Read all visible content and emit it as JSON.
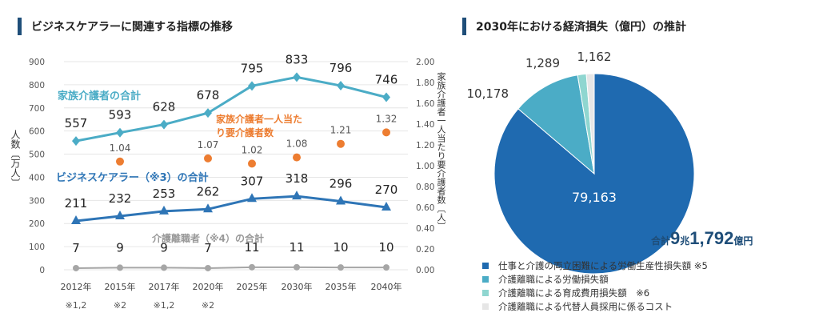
{
  "chart_data": [
    {
      "type": "line",
      "title": "ビジネスケアラーに関連する指標の推移",
      "categories": [
        "2012年",
        "2015年",
        "2017年",
        "2020年",
        "2025年",
        "2030年",
        "2035年",
        "2040年"
      ],
      "category_notes": [
        "※1,2",
        "※2",
        "※1,2",
        "※2",
        "",
        "",
        "",
        ""
      ],
      "ylabel": "人数〔万人〕",
      "ylim": [
        0,
        900
      ],
      "yticks": [
        0,
        100,
        200,
        300,
        400,
        500,
        600,
        700,
        800,
        900
      ],
      "y2label": "家族介護者一人当たり要介護者数〔人〕",
      "y2lim": [
        0,
        2
      ],
      "y2ticks": [
        "0.00",
        "0.20",
        "0.40",
        "0.60",
        "0.80",
        "1.00",
        "1.20",
        "1.40",
        "1.60",
        "1.80",
        "2.00"
      ],
      "grid": true,
      "series": [
        {
          "name": "家族介護者の合計",
          "axis": "left",
          "marker": "diamond",
          "color": "#4bacc6",
          "values": [
            557,
            593,
            628,
            678,
            795,
            833,
            796,
            746
          ]
        },
        {
          "name": "ビジネスケアラー（※3）の合計",
          "axis": "left",
          "marker": "triangle",
          "color": "#2e75b6",
          "values": [
            211,
            232,
            253,
            262,
            307,
            318,
            296,
            270
          ]
        },
        {
          "name": "介護離職者（※4）の合計",
          "axis": "left",
          "marker": "circle",
          "color": "#a6a6a6",
          "values": [
            7,
            9,
            9,
            7,
            11,
            11,
            10,
            10
          ]
        },
        {
          "name": "家族介護者一人当たり要介護者数",
          "axis": "right",
          "marker": "dot",
          "color": "#ed7d31",
          "values": [
            null,
            1.04,
            null,
            1.07,
            1.02,
            1.08,
            1.21,
            1.32
          ]
        }
      ]
    },
    {
      "type": "pie",
      "title": "2030年における経済損失（億円）の推計",
      "slices": [
        {
          "label": "仕事と介護の両立困難による労働生産性損失額 ※5",
          "value": 79163,
          "display": "79,163",
          "color": "#1f6ab0"
        },
        {
          "label": "介護離職による労働損失額",
          "value": 10178,
          "display": "10,178",
          "color": "#4bacc6"
        },
        {
          "label": "介護離職による育成費用損失額　※6",
          "value": 1289,
          "display": "1,289",
          "color": "#8fd6d0"
        },
        {
          "label": "介護離職による代替人員採用に係るコスト",
          "value": 1162,
          "display": "1,162",
          "color": "#e6e6e6"
        }
      ],
      "total": {
        "prefix": "合計",
        "num1": "9",
        "unit1": "兆",
        "num2": "1,792",
        "unit2": "億円"
      }
    }
  ]
}
